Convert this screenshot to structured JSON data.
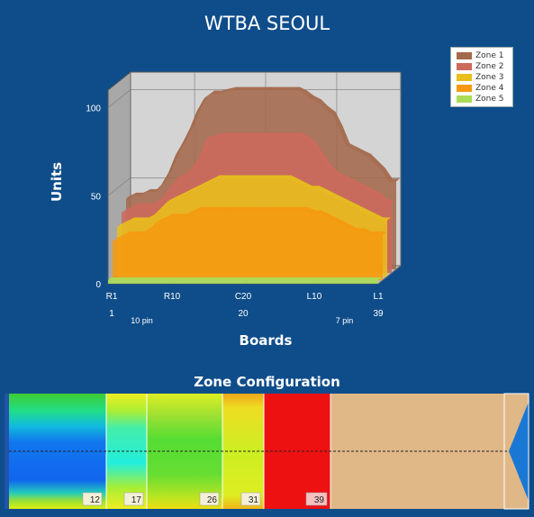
{
  "title": "WTBA SEOUL",
  "chart_data": {
    "type": "area",
    "title": "WTBA SEOUL",
    "xlabel": "Boards",
    "ylabel": "Units",
    "ylim": [
      0,
      100
    ],
    "yticks": [
      "0",
      "50",
      "100"
    ],
    "xticks": [
      "R1",
      "R10",
      "C20",
      "L10",
      "L1"
    ],
    "xticks2": [
      "1",
      "20",
      "39"
    ],
    "xnotes": [
      "10 pin",
      "7 pin"
    ],
    "x": [
      1,
      2,
      3,
      4,
      5,
      6,
      7,
      8,
      9,
      10,
      11,
      12,
      13,
      14,
      15,
      16,
      17,
      18,
      19,
      20,
      21,
      22,
      23,
      24,
      25,
      26,
      27,
      28,
      29,
      30,
      31,
      32,
      33,
      34,
      35,
      36,
      37,
      38,
      39
    ],
    "legend_position": "top-right",
    "series": [
      {
        "name": "Zone 1",
        "color": "#a4694c",
        "values": [
          40,
          42,
          42,
          44,
          44,
          48,
          55,
          65,
          72,
          80,
          90,
          97,
          100,
          100,
          101,
          102,
          102,
          102,
          102,
          102,
          102,
          102,
          102,
          102,
          102,
          100,
          97,
          95,
          91,
          88,
          80,
          70,
          68,
          66,
          64,
          60,
          56,
          50,
          50
        ]
      },
      {
        "name": "Zone 2",
        "color": "#cc6a5c",
        "values": [
          34,
          36,
          38,
          38,
          38,
          40,
          44,
          50,
          54,
          56,
          60,
          66,
          76,
          77,
          78,
          78,
          78,
          78,
          78,
          78,
          78,
          78,
          78,
          78,
          78,
          78,
          76,
          72,
          66,
          60,
          56,
          54,
          52,
          50,
          48,
          46,
          44,
          40,
          40
        ]
      },
      {
        "name": "Zone 3",
        "color": "#e8bf1c",
        "values": [
          28,
          30,
          32,
          32,
          32,
          34,
          38,
          42,
          44,
          46,
          48,
          50,
          52,
          54,
          56,
          56,
          56,
          56,
          56,
          56,
          56,
          56,
          56,
          56,
          56,
          54,
          52,
          50,
          50,
          48,
          46,
          44,
          42,
          40,
          38,
          36,
          34,
          32,
          32
        ]
      },
      {
        "name": "Zone 4",
        "color": "#f59a10",
        "values": [
          22,
          24,
          26,
          26,
          26,
          28,
          32,
          34,
          36,
          36,
          36,
          38,
          40,
          40,
          40,
          40,
          40,
          40,
          40,
          40,
          40,
          40,
          40,
          40,
          40,
          40,
          40,
          40,
          38,
          38,
          36,
          34,
          32,
          30,
          28,
          28,
          26,
          26,
          26
        ]
      },
      {
        "name": "Zone 5",
        "color": "#aadd55",
        "values": [
          2,
          2,
          2,
          2,
          2,
          2,
          2,
          2,
          2,
          2,
          2,
          2,
          2,
          2,
          2,
          2,
          2,
          2,
          2,
          2,
          2,
          2,
          2,
          2,
          2,
          2,
          2,
          2,
          2,
          2,
          2,
          2,
          2,
          2,
          2,
          2,
          2,
          2,
          2
        ]
      }
    ]
  },
  "zone_config": {
    "title": "Zone Configuration",
    "boundaries": [
      "12",
      "17",
      "26",
      "31",
      "39"
    ]
  }
}
